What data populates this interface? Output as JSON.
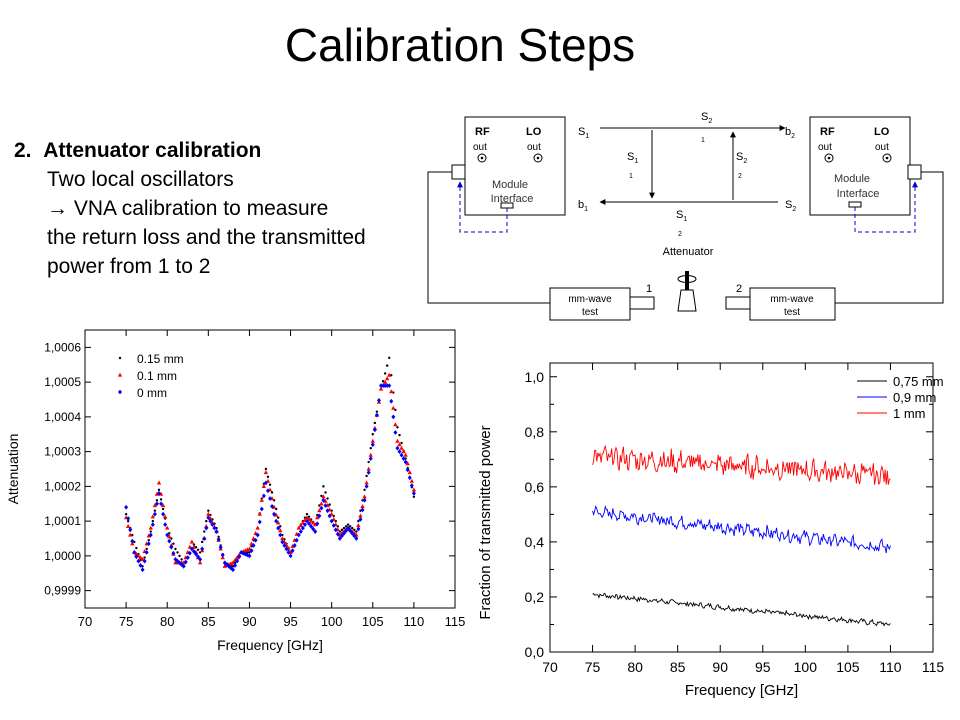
{
  "slide": {
    "title": "Calibration Steps",
    "step_number": "2.",
    "step_title": "Attenuator calibration",
    "lines": [
      "Two local oscillators",
      "→ VNA calibration to measure",
      "the return loss and the transmitted",
      "power from 1 to 2"
    ]
  },
  "diagram": {
    "left_module": {
      "rf": "RF",
      "lo": "LO",
      "out1": "out",
      "out2": "out",
      "name1": "Module",
      "name2": "Interface"
    },
    "right_module": {
      "rf": "RF",
      "lo": "LO",
      "out1": "out",
      "out2": "out",
      "name1": "Module",
      "name2": "Interface"
    },
    "s1": "S",
    "s1_sub": "1",
    "b1": "b",
    "b1_sub": "1",
    "b2": "b",
    "b2_sub": "2",
    "s2": "S",
    "s2_sub": "2",
    "s21": "S",
    "s21_sub": "2",
    "s21_sub2": "1",
    "s11": "S",
    "s11_sub": "1",
    "s11_sub2": "1",
    "s22": "S",
    "s22_sub": "2",
    "s22_sub2": "2",
    "s12": "S",
    "s12_sub": "1",
    "s12_sub2": "2",
    "attenuator": "Attenuator",
    "port1": "1",
    "port2": "2",
    "test_left1": "mm-wave",
    "test_left2": "test",
    "test_right1": "mm-wave",
    "test_right2": "test"
  },
  "chart_data": [
    {
      "type": "scatter",
      "xlabel": "Frequency [GHz]",
      "ylabel": "Attenuation",
      "xlim": [
        70,
        115
      ],
      "ylim": [
        0.99985,
        1.00065
      ],
      "xticks": [
        "70",
        "75",
        "80",
        "85",
        "90",
        "95",
        "100",
        "105",
        "110",
        "115"
      ],
      "yticks": [
        "0,9999",
        "1,0000",
        "1,0001",
        "1,0002",
        "1,0003",
        "1,0004",
        "1,0005",
        "1,0006"
      ],
      "legend_position": "top-left",
      "series": [
        {
          "name": "0.15 mm",
          "color": "#000000",
          "marker": "dot",
          "x": [
            75,
            76,
            77,
            78,
            79,
            80,
            81,
            82,
            83,
            84,
            85,
            86,
            87,
            88,
            89,
            90,
            91,
            92,
            93,
            94,
            95,
            96,
            97,
            98,
            99,
            100,
            101,
            102,
            103,
            104,
            105,
            106,
            107,
            108,
            109,
            110
          ],
          "y": [
            1.00012,
            1.00004,
            0.99997,
            1.00007,
            1.00019,
            1.00008,
            1.00002,
            0.99998,
            1.00004,
            1.00001,
            1.00013,
            1.00008,
            0.99998,
            0.99997,
            1.00001,
            1.00001,
            1.00008,
            1.00025,
            1.00016,
            1.00006,
            1.00001,
            1.00008,
            1.00012,
            1.00009,
            1.0002,
            1.00013,
            1.00007,
            1.00009,
            1.00007,
            1.00019,
            1.00035,
            1.00048,
            1.00057,
            1.00037,
            1.00028,
            1.00017
          ]
        },
        {
          "name": "0.1 mm",
          "color": "#ff0000",
          "marker": "triangle",
          "x": [
            75,
            76,
            77,
            78,
            79,
            80,
            81,
            82,
            83,
            84,
            85,
            86,
            87,
            88,
            89,
            90,
            91,
            92,
            93,
            94,
            95,
            96,
            97,
            98,
            99,
            100,
            101,
            102,
            103,
            104,
            105,
            106,
            107,
            108,
            109,
            110
          ],
          "y": [
            1.00011,
            1.00001,
            0.99999,
            1.00008,
            1.00021,
            1.00008,
            0.99998,
            0.99998,
            1.00004,
            0.99998,
            1.00012,
            1.00007,
            0.99997,
            0.99998,
            1.00001,
            1.00002,
            1.00008,
            1.00024,
            1.00014,
            1.00005,
            1.00001,
            1.00008,
            1.00011,
            1.00009,
            1.00017,
            1.00012,
            1.00006,
            1.00008,
            1.00006,
            1.00017,
            1.00033,
            1.00048,
            1.00052,
            1.00033,
            1.00029,
            1.00019
          ]
        },
        {
          "name": "0 mm",
          "color": "#0000ff",
          "marker": "diamond",
          "x": [
            75,
            76,
            77,
            78,
            79,
            80,
            81,
            82,
            83,
            84,
            85,
            86,
            87,
            88,
            89,
            90,
            91,
            92,
            93,
            94,
            95,
            96,
            97,
            98,
            99,
            100,
            101,
            102,
            103,
            104,
            105,
            106,
            107,
            108,
            109,
            110
          ],
          "y": [
            1.00014,
            1.00001,
            0.99996,
            1.00006,
            1.00018,
            1.00006,
            0.99999,
            0.99997,
            1.00002,
            0.99999,
            1.00011,
            1.00007,
            0.99998,
            0.99996,
            1.00001,
            1.0,
            1.00006,
            1.00021,
            1.00012,
            1.00004,
            1.0,
            1.00006,
            1.0001,
            1.00007,
            1.00016,
            1.0001,
            1.00005,
            1.00008,
            1.00005,
            1.00016,
            1.00032,
            1.00049,
            1.00049,
            1.00031,
            1.00027,
            1.00018
          ]
        }
      ]
    },
    {
      "type": "line",
      "xlabel": "Frequency [GHz]",
      "ylabel": "Fraction of transmitted power",
      "xlim": [
        70,
        115
      ],
      "ylim": [
        0.0,
        1.05
      ],
      "xticks": [
        "70",
        "75",
        "80",
        "85",
        "90",
        "95",
        "100",
        "105",
        "110",
        "115"
      ],
      "yticks": [
        "0,0",
        "0,2",
        "0,4",
        "0,6",
        "0,8",
        "1,0"
      ],
      "legend_position": "top-right",
      "series": [
        {
          "name": "0,75 mm",
          "color": "#000000",
          "x_range": [
            75,
            110
          ],
          "start": 0.21,
          "end": 0.1,
          "noise": 0.008
        },
        {
          "name": "0,9 mm",
          "color": "#0000ff",
          "x_range": [
            75,
            110
          ],
          "start": 0.51,
          "end": 0.38,
          "noise": 0.02
        },
        {
          "name": "1 mm",
          "color": "#ff0000",
          "x_range": [
            75,
            110
          ],
          "start": 0.71,
          "end": 0.64,
          "noise": 0.035
        }
      ]
    }
  ]
}
